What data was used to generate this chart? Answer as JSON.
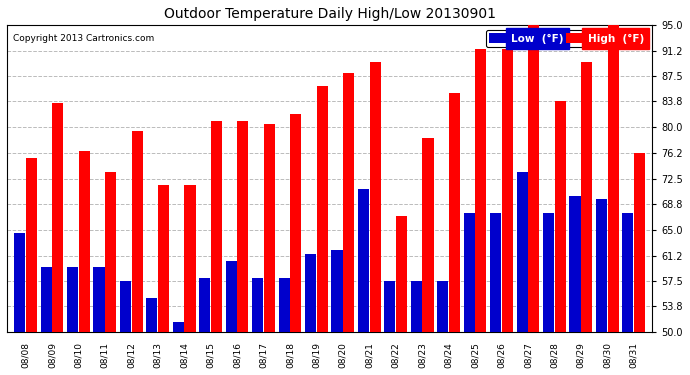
{
  "title": "Outdoor Temperature Daily High/Low 20130901",
  "copyright": "Copyright 2013 Cartronics.com",
  "categories": [
    "08/08",
    "08/09",
    "08/10",
    "08/11",
    "08/12",
    "08/13",
    "08/14",
    "08/15",
    "08/16",
    "08/17",
    "08/18",
    "08/19",
    "08/20",
    "08/21",
    "08/22",
    "08/23",
    "08/24",
    "08/25",
    "08/26",
    "08/27",
    "08/28",
    "08/29",
    "08/30",
    "08/31"
  ],
  "high": [
    75.5,
    83.5,
    76.5,
    73.5,
    79.5,
    71.5,
    71.5,
    81.0,
    81.0,
    80.5,
    82.0,
    86.0,
    88.0,
    89.5,
    67.0,
    78.5,
    85.0,
    91.5,
    91.5,
    95.0,
    83.8,
    89.5,
    95.0,
    76.2
  ],
  "low": [
    64.5,
    59.5,
    59.5,
    59.5,
    57.5,
    55.0,
    51.5,
    58.0,
    60.5,
    58.0,
    58.0,
    61.5,
    62.0,
    71.0,
    57.5,
    57.5,
    57.5,
    67.5,
    67.5,
    73.5,
    67.5,
    70.0,
    69.5,
    67.5
  ],
  "high_color": "#ff0000",
  "low_color": "#0000cc",
  "ylim_min": 50.0,
  "ylim_max": 95.0,
  "yticks": [
    50.0,
    53.8,
    57.5,
    61.2,
    65.0,
    68.8,
    72.5,
    76.2,
    80.0,
    83.8,
    87.5,
    91.2,
    95.0
  ],
  "bg_color": "#ffffff",
  "plot_bg_color": "#ffffff",
  "grid_color": "#bbbbbb",
  "legend_low_label": "Low  (°F)",
  "legend_high_label": "High  (°F)",
  "bar_bottom": 50.0
}
